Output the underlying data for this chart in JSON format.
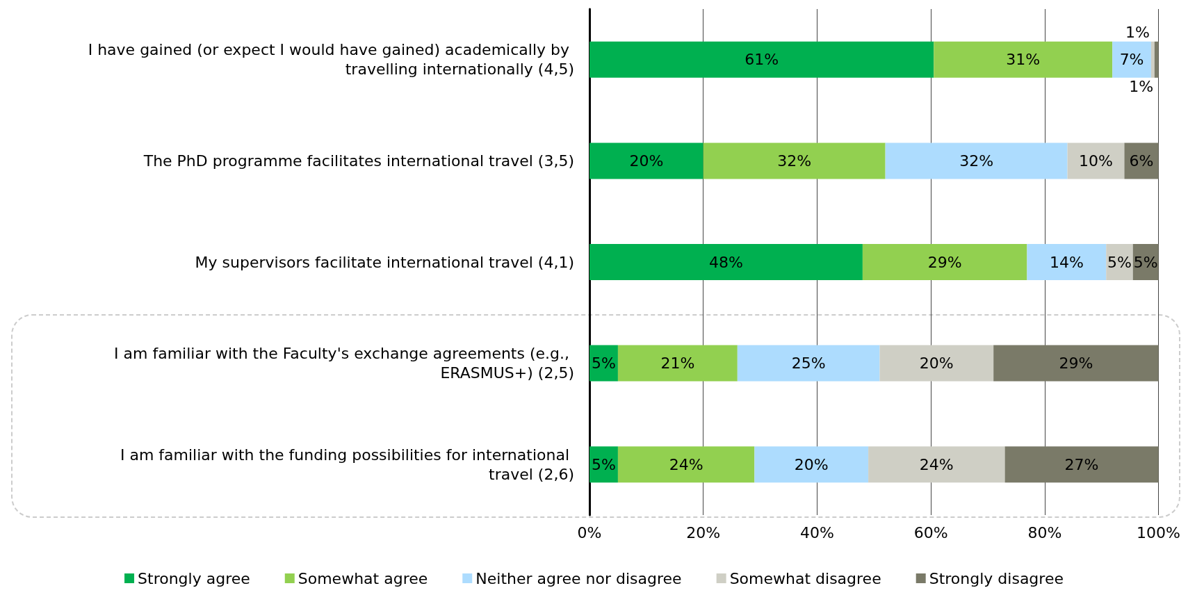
{
  "chart_data": {
    "type": "bar",
    "orientation": "horizontal",
    "stacked": true,
    "categories": [
      "I have gained (or expect I would have gained) academically by travelling internationally (4,5)",
      "The PhD programme facilitates international travel (3,5)",
      "My supervisors facilitate international travel (4,1)",
      "I am familiar with the Faculty's exchange agreements (e.g., ERASMUS+) (2,5)",
      "I am familiar with the funding possibilities for international travel (2,6)"
    ],
    "series": [
      {
        "name": "Strongly agree",
        "color": "#00b050",
        "values": [
          60.5,
          20,
          48,
          5,
          5
        ],
        "value_labels": [
          "61%",
          "20%",
          "48%",
          "5%",
          "5%"
        ]
      },
      {
        "name": "Somewhat agree",
        "color": "#92d050",
        "values": [
          31.4,
          32,
          28.9,
          21,
          24
        ],
        "value_labels": [
          "31%",
          "32%",
          "29%",
          "21%",
          "24%"
        ]
      },
      {
        "name": "Neither agree nor disagree",
        "color": "#addcfe",
        "values": [
          6.8,
          32,
          13.9,
          25,
          20
        ],
        "value_labels": [
          "7%",
          "32%",
          "14%",
          "25%",
          "20%"
        ]
      },
      {
        "name": "Somewhat disagree",
        "color": "#cfcfc5",
        "values": [
          0.6,
          10,
          4.7,
          20,
          24
        ],
        "value_labels": [
          "1%",
          "10%",
          "5%",
          "20%",
          "24%"
        ]
      },
      {
        "name": "Strongly disagree",
        "color": "#7a7a68",
        "values": [
          0.7,
          6,
          4.5,
          29,
          27
        ],
        "value_labels": [
          "1%",
          "6%",
          "5%",
          "29%",
          "27%"
        ]
      }
    ],
    "xlim": [
      0,
      100
    ],
    "xticks": [
      {
        "value": 0,
        "label": "0%"
      },
      {
        "value": 20,
        "label": "20%"
      },
      {
        "value": 40,
        "label": "40%"
      },
      {
        "value": 60,
        "label": "60%"
      },
      {
        "value": 80,
        "label": "80%"
      },
      {
        "value": 100,
        "label": "100%"
      }
    ],
    "grid": "x",
    "legend": "bottom"
  }
}
